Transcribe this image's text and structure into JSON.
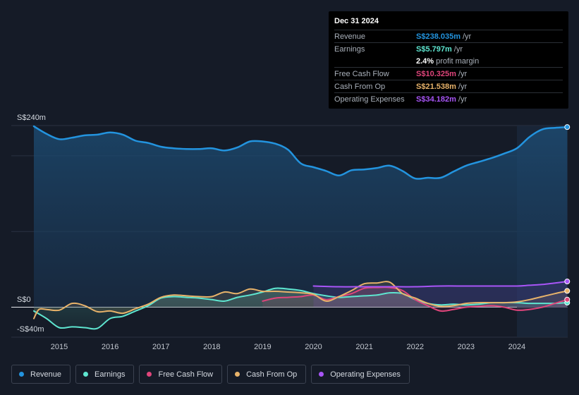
{
  "tooltip": {
    "date": "Dec 31 2024",
    "rows": [
      {
        "label": "Revenue",
        "value": "S$238.035m",
        "unit": "/yr",
        "color": "#2394df"
      },
      {
        "label": "Earnings",
        "value": "S$5.797m",
        "unit": "/yr",
        "color": "#5ee6d0"
      },
      {
        "label": "",
        "value": "2.4%",
        "unit": "profit margin",
        "color": "#ffffff"
      },
      {
        "label": "Free Cash Flow",
        "value": "S$10.325m",
        "unit": "/yr",
        "color": "#e0457b"
      },
      {
        "label": "Cash From Op",
        "value": "S$21.538m",
        "unit": "/yr",
        "color": "#e8b36a"
      },
      {
        "label": "Operating Expenses",
        "value": "S$34.182m",
        "unit": "/yr",
        "color": "#a855f7"
      }
    ]
  },
  "legend": [
    {
      "label": "Revenue",
      "color": "#2394df"
    },
    {
      "label": "Earnings",
      "color": "#5ee6d0"
    },
    {
      "label": "Free Cash Flow",
      "color": "#e0457b"
    },
    {
      "label": "Cash From Op",
      "color": "#e8b36a"
    },
    {
      "label": "Operating Expenses",
      "color": "#a855f7"
    }
  ],
  "chart_data": {
    "type": "line",
    "y_axis_labels": [
      "S$240m",
      "S$0",
      "-S$40m"
    ],
    "ylim": [
      -40,
      240
    ],
    "xlim": [
      2014.5,
      2025.0
    ],
    "x_ticks": [
      "2015",
      "2016",
      "2017",
      "2018",
      "2019",
      "2020",
      "2021",
      "2022",
      "2023",
      "2024"
    ],
    "x_tick_values": [
      2015,
      2016,
      2017,
      2018,
      2019,
      2020,
      2021,
      2022,
      2023,
      2024
    ],
    "forecast_start": 2024.0,
    "series": [
      {
        "name": "Revenue",
        "color": "#2394df",
        "fill": true,
        "x": [
          2014.5,
          2014.75,
          2015.0,
          2015.25,
          2015.5,
          2015.75,
          2016.0,
          2016.25,
          2016.5,
          2016.75,
          2017.0,
          2017.25,
          2017.5,
          2017.75,
          2018.0,
          2018.25,
          2018.5,
          2018.75,
          2019.0,
          2019.25,
          2019.5,
          2019.75,
          2020.0,
          2020.25,
          2020.5,
          2020.75,
          2021.0,
          2021.25,
          2021.5,
          2021.75,
          2022.0,
          2022.25,
          2022.5,
          2022.75,
          2023.0,
          2023.25,
          2023.5,
          2023.75,
          2024.0,
          2024.25,
          2024.5,
          2024.75,
          2024.99
        ],
        "values": [
          239,
          229,
          222,
          224,
          227,
          228,
          231,
          228,
          220,
          217,
          212,
          210,
          209,
          209,
          210,
          207,
          211,
          219,
          219,
          216,
          208,
          190,
          185,
          180,
          174,
          181,
          182,
          184,
          187,
          180,
          170,
          171,
          171,
          179,
          187,
          192,
          197,
          203,
          210,
          225,
          235,
          237,
          238
        ]
      },
      {
        "name": "Earnings",
        "color": "#5ee6d0",
        "x": [
          2014.5,
          2014.75,
          2015.0,
          2015.25,
          2015.5,
          2015.75,
          2016.0,
          2016.25,
          2016.5,
          2016.75,
          2017.0,
          2017.25,
          2017.5,
          2017.75,
          2018.0,
          2018.25,
          2018.5,
          2018.75,
          2019.0,
          2019.25,
          2019.5,
          2019.75,
          2020.0,
          2020.25,
          2020.5,
          2020.75,
          2021.0,
          2021.25,
          2021.5,
          2021.75,
          2022.0,
          2022.25,
          2022.5,
          2022.75,
          2023.0,
          2023.25,
          2023.5,
          2023.75,
          2024.0,
          2024.25,
          2024.5,
          2024.75,
          2024.99
        ],
        "values": [
          -5,
          -15,
          -27,
          -26,
          -27,
          -28,
          -15,
          -12,
          -5,
          2,
          12,
          14,
          13,
          12,
          10,
          8,
          13,
          16,
          20,
          25,
          24,
          22,
          18,
          15,
          13,
          14,
          15,
          16,
          19,
          18,
          10,
          5,
          3,
          4,
          3,
          4,
          6,
          6,
          6,
          5,
          5,
          5,
          6
        ]
      },
      {
        "name": "Free Cash Flow",
        "color": "#e0457b",
        "x": [
          2019.0,
          2019.25,
          2019.5,
          2019.75,
          2020.0,
          2020.25,
          2020.5,
          2020.75,
          2021.0,
          2021.25,
          2021.5,
          2021.75,
          2022.0,
          2022.25,
          2022.5,
          2022.75,
          2023.0,
          2023.25,
          2023.5,
          2023.75,
          2024.0,
          2024.25,
          2024.5,
          2024.75,
          2024.99
        ],
        "values": [
          8,
          12,
          13,
          14,
          16,
          10,
          14,
          18,
          25,
          26,
          26,
          22,
          10,
          2,
          -5,
          -3,
          0,
          1,
          2,
          0,
          -4,
          -3,
          0,
          5,
          10
        ]
      },
      {
        "name": "Cash From Op",
        "color": "#e8b36a",
        "x": [
          2014.5,
          2014.6,
          2014.75,
          2015.0,
          2015.25,
          2015.5,
          2015.75,
          2016.0,
          2016.25,
          2016.5,
          2016.75,
          2017.0,
          2017.25,
          2017.5,
          2017.75,
          2018.0,
          2018.25,
          2018.5,
          2018.75,
          2019.0,
          2019.25,
          2019.5,
          2019.75,
          2020.0,
          2020.25,
          2020.5,
          2020.75,
          2021.0,
          2021.25,
          2021.5,
          2021.75,
          2022.0,
          2022.25,
          2022.5,
          2022.75,
          2023.0,
          2023.25,
          2023.5,
          2023.75,
          2024.0,
          2024.25,
          2024.5,
          2024.75,
          2024.99
        ],
        "values": [
          -15,
          -3,
          -3,
          -4,
          5,
          2,
          -6,
          -5,
          -8,
          -2,
          4,
          13,
          16,
          15,
          14,
          14,
          20,
          18,
          24,
          21,
          21,
          20,
          19,
          17,
          8,
          14,
          22,
          31,
          32,
          33,
          18,
          12,
          5,
          1,
          2,
          5,
          6,
          6,
          6,
          7,
          10,
          14,
          18,
          21.5
        ]
      },
      {
        "name": "Operating Expenses",
        "color": "#a855f7",
        "x": [
          2020.0,
          2020.5,
          2021.0,
          2021.5,
          2022.0,
          2022.5,
          2023.0,
          2023.5,
          2024.0,
          2024.25,
          2024.5,
          2024.75,
          2024.99
        ],
        "values": [
          28,
          27,
          27,
          27,
          27,
          28,
          28,
          28,
          28,
          29,
          30,
          32,
          34
        ]
      }
    ]
  }
}
